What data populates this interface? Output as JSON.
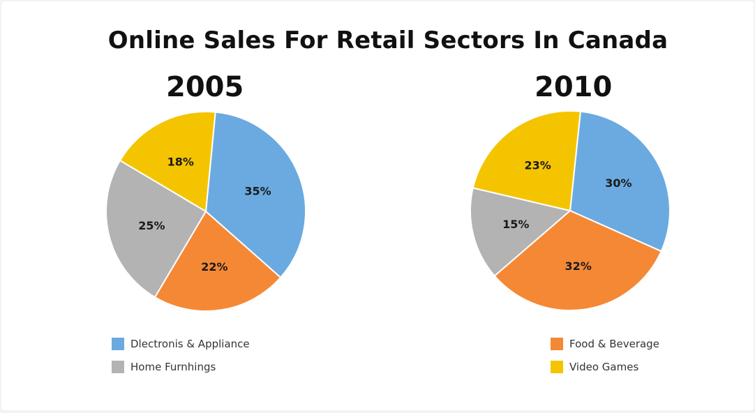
{
  "title": "Online Sales For Retail Sectors In Canada",
  "colors": {
    "electronics": "#6aaae0",
    "food": "#f58835",
    "home": "#b3b3b3",
    "games": "#f5c400"
  },
  "legend": [
    {
      "label": "Dlectronis & Appliance",
      "color": "#6aaae0"
    },
    {
      "label": "Home Furnhings",
      "color": "#b3b3b3"
    },
    {
      "label": "Food & Beverage",
      "color": "#f58835"
    },
    {
      "label": "Video Games",
      "color": "#f5c400"
    }
  ],
  "chart_data": [
    {
      "type": "pie",
      "title": "2005",
      "slices": [
        {
          "category": "Dlectronis & Appliance",
          "value": 35,
          "label": "35%",
          "color": "#6aaae0"
        },
        {
          "category": "Food & Beverage",
          "value": 22,
          "label": "22%",
          "color": "#f58835"
        },
        {
          "category": "Home Furnhings",
          "value": 25,
          "label": "25%",
          "color": "#b3b3b3"
        },
        {
          "category": "Video Games",
          "value": 18,
          "label": "18%",
          "color": "#f5c400"
        }
      ]
    },
    {
      "type": "pie",
      "title": "2010",
      "slices": [
        {
          "category": "Dlectronis & Appliance",
          "value": 30,
          "label": "30%",
          "color": "#6aaae0"
        },
        {
          "category": "Food & Beverage",
          "value": 32,
          "label": "32%",
          "color": "#f58835"
        },
        {
          "category": "Home Furnhings",
          "value": 15,
          "label": "15%",
          "color": "#b3b3b3"
        },
        {
          "category": "Video Games",
          "value": 23,
          "label": "23%",
          "color": "#f5c400"
        }
      ]
    }
  ]
}
